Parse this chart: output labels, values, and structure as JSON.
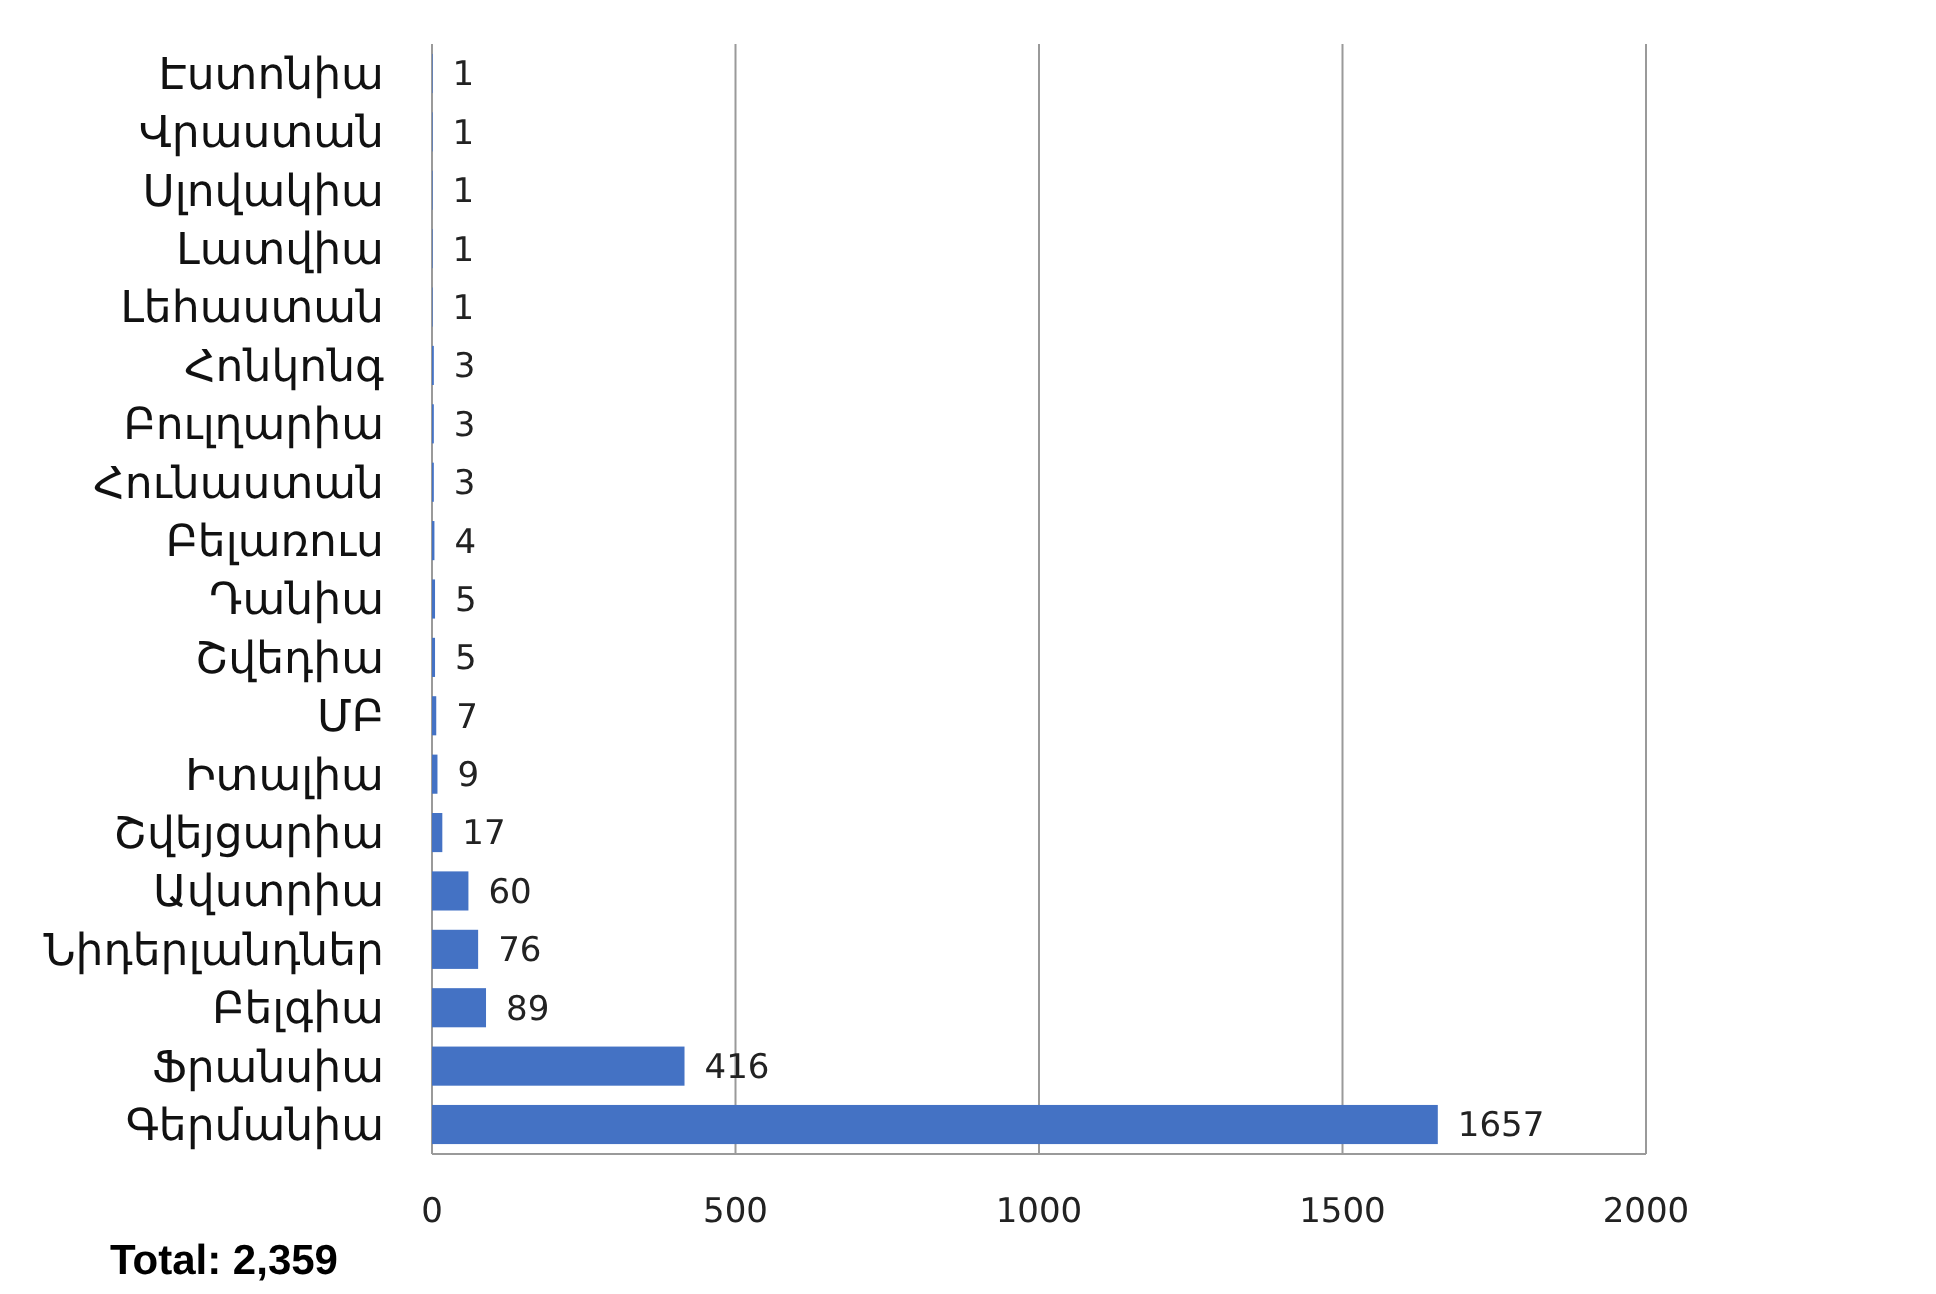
{
  "chart_data": {
    "type": "bar",
    "orientation": "horizontal",
    "categories": [
      "Էստոնիա",
      "Վրաստան",
      "Սլովակիա",
      "Լատվիա",
      "Լեհաստան",
      "Հոնկոնգ",
      "Բուլղարիա",
      "Հունաստան",
      "Բելառուս",
      "Դանիա",
      "Շվեդիա",
      "ՄԲ",
      "Իտալիա",
      "Շվեյցարիա",
      "Ավստրիա",
      "Նիդերլանդներ",
      "Բելգիա",
      "Ֆրանսիա",
      "Գերմանիա"
    ],
    "values": [
      1,
      1,
      1,
      1,
      1,
      3,
      3,
      3,
      4,
      5,
      5,
      7,
      9,
      17,
      60,
      76,
      89,
      416,
      1657
    ],
    "color": "#4472c4",
    "data_labels": true,
    "xlim": [
      0,
      2000
    ],
    "xticks": [
      0,
      500,
      1000,
      1500,
      2000
    ],
    "grid": "x",
    "annotations": [
      "Total: 2,359"
    ]
  }
}
